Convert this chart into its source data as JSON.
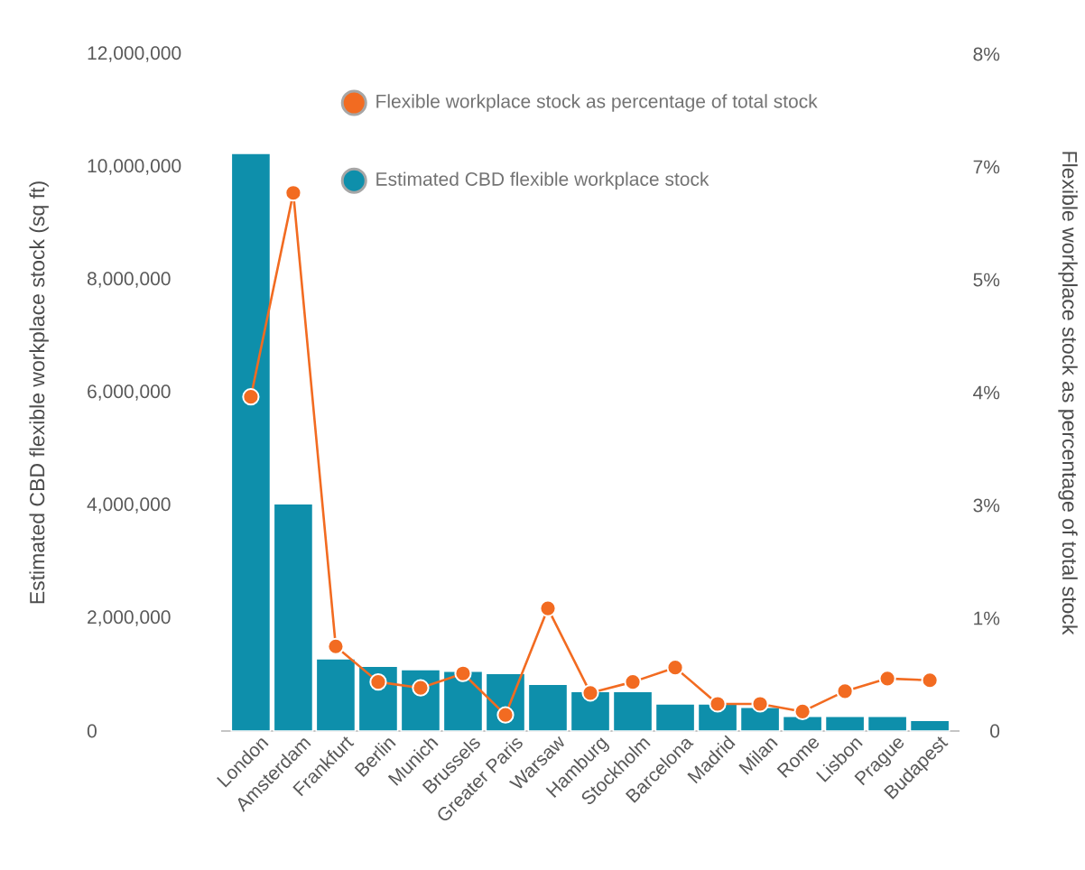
{
  "chart_data": {
    "type": "bar",
    "categories": [
      "London",
      "Amsterdam",
      "Frankfurt",
      "Berlin",
      "Munich",
      "Brussels",
      "Greater Paris",
      "Warsaw",
      "Hamburg",
      "Stockholm",
      "Barcelona",
      "Madrid",
      "Milan",
      "Rome",
      "Lisbon",
      "Prague",
      "Budapest"
    ],
    "series": [
      {
        "name": "Flexible workplace stock as percentage of total stock",
        "type": "line",
        "axis": "y2",
        "color": "#f26b21",
        "values": [
          3.95,
          6.36,
          1.0,
          0.58,
          0.51,
          0.68,
          0.19,
          1.45,
          0.45,
          0.58,
          0.75,
          0.32,
          0.32,
          0.23,
          0.47,
          0.62,
          0.6
        ]
      },
      {
        "name": "Estimated CBD flexible workplace stock",
        "color": "#0e8fab",
        "values": [
          10240000,
          4030000,
          1280000,
          1150000,
          1090000,
          1060000,
          1020000,
          830000,
          700000,
          700000,
          480000,
          480000,
          420000,
          260000,
          260000,
          260000,
          190000
        ]
      }
    ],
    "ylabel": "Estimated CBD flexible workplace stock (sq ft)",
    "y2label": "Flexible workplace stock as percentage of total stock",
    "ylim": [
      0,
      12000000
    ],
    "yticks": [
      {
        "value": 0,
        "label": "0"
      },
      {
        "value": 2000000,
        "label": "2,000,000"
      },
      {
        "value": 4000000,
        "label": "4,000,000"
      },
      {
        "value": 6000000,
        "label": "6,000,000"
      },
      {
        "value": 8000000,
        "label": "8,000,000"
      },
      {
        "value": 10000000,
        "label": "10,000,000"
      },
      {
        "value": 12000000,
        "label": "12,000,000"
      }
    ],
    "y2lim": [
      0,
      8
    ],
    "y2ticks": [
      {
        "value": 0,
        "label": "0"
      },
      {
        "value": 1.333,
        "label": "1%"
      },
      {
        "value": 2.667,
        "label": "3%"
      },
      {
        "value": 4,
        "label": "4%"
      },
      {
        "value": 5.333,
        "label": "5%"
      },
      {
        "value": 6.667,
        "label": "7%"
      },
      {
        "value": 8,
        "label": "8%"
      }
    ],
    "grid": false,
    "legend": "top right",
    "marker": "circle",
    "line_style": "solid"
  }
}
